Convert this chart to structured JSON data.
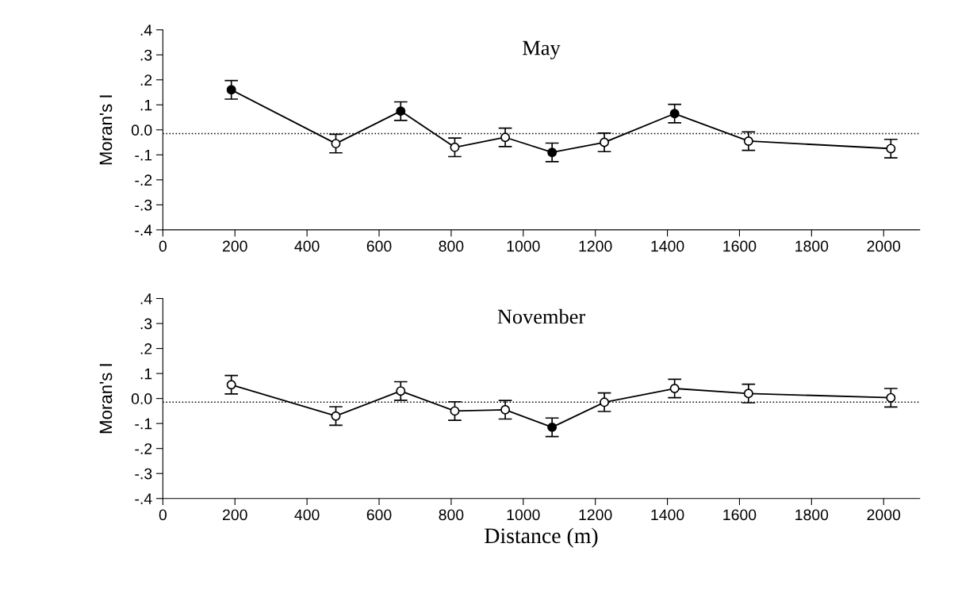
{
  "chart_data": [
    {
      "type": "line",
      "title": "May",
      "ylabel": "Moran's I",
      "x": [
        190,
        480,
        660,
        810,
        950,
        1080,
        1225,
        1420,
        1625,
        2020
      ],
      "series": [
        {
          "color": "#000000",
          "colors": [
            "#000000",
            "#ffffff",
            "#000000",
            "#ffffff",
            "#ffffff",
            "#000000",
            "#ffffff",
            "#000000",
            "#ffffff",
            "#ffffff"
          ],
          "values": [
            0.16,
            -0.055,
            0.075,
            -0.07,
            -0.03,
            -0.09,
            -0.05,
            0.065,
            -0.045,
            -0.075
          ],
          "errors": [
            0.037,
            0.037,
            0.037,
            0.037,
            0.037,
            0.037,
            0.037,
            0.037,
            0.037,
            0.037
          ]
        }
      ],
      "xlim": [
        0,
        2100
      ],
      "xticks": [
        0,
        200,
        400,
        600,
        800,
        1000,
        1200,
        1400,
        1600,
        1800,
        2000
      ],
      "ylim": [
        -0.4,
        0.4
      ],
      "yticks": [
        {
          "value": -0.4,
          "label": "-.4"
        },
        {
          "value": -0.3,
          "label": "-.3"
        },
        {
          "value": -0.2,
          "label": "-.2"
        },
        {
          "value": -0.1,
          "label": "-.1"
        },
        {
          "value": 0,
          "label": "0.0"
        },
        {
          "value": 0.1,
          "label": ".1"
        },
        {
          "value": 0.2,
          "label": ".2"
        },
        {
          "value": 0.3,
          "label": ".3"
        },
        {
          "value": 0.4,
          "label": ".4"
        }
      ],
      "ref_lines": [
        {
          "axis": "y",
          "value": -0.015,
          "line_style": "dotted",
          "color": "#000000"
        }
      ],
      "marker": "circle",
      "line_style": "solid",
      "grid": false,
      "legend": false
    },
    {
      "type": "line",
      "title": "November",
      "ylabel": "Moran's I",
      "xlabel": "Distance (m)",
      "x": [
        190,
        480,
        660,
        810,
        950,
        1080,
        1225,
        1420,
        1625,
        2020
      ],
      "series": [
        {
          "color": "#000000",
          "colors": [
            "#ffffff",
            "#ffffff",
            "#ffffff",
            "#ffffff",
            "#ffffff",
            "#000000",
            "#ffffff",
            "#ffffff",
            "#ffffff",
            "#ffffff"
          ],
          "values": [
            0.055,
            -0.07,
            0.03,
            -0.05,
            -0.045,
            -0.115,
            -0.015,
            0.04,
            0.02,
            0.003
          ],
          "errors": [
            0.037,
            0.037,
            0.037,
            0.037,
            0.037,
            0.037,
            0.037,
            0.037,
            0.037,
            0.037
          ]
        }
      ],
      "xlim": [
        0,
        2100
      ],
      "xticks": [
        0,
        200,
        400,
        600,
        800,
        1000,
        1200,
        1400,
        1600,
        1800,
        2000
      ],
      "ylim": [
        -0.4,
        0.4
      ],
      "yticks": [
        {
          "value": -0.4,
          "label": "-.4"
        },
        {
          "value": -0.3,
          "label": "-.3"
        },
        {
          "value": -0.2,
          "label": "-.2"
        },
        {
          "value": -0.1,
          "label": "-.1"
        },
        {
          "value": 0,
          "label": "0.0"
        },
        {
          "value": 0.1,
          "label": ".1"
        },
        {
          "value": 0.2,
          "label": ".2"
        },
        {
          "value": 0.3,
          "label": ".3"
        },
        {
          "value": 0.4,
          "label": ".4"
        }
      ],
      "ref_lines": [
        {
          "axis": "y",
          "value": -0.015,
          "line_style": "dotted",
          "color": "#000000"
        }
      ],
      "marker": "circle",
      "line_style": "solid",
      "grid": false,
      "legend": false
    }
  ]
}
